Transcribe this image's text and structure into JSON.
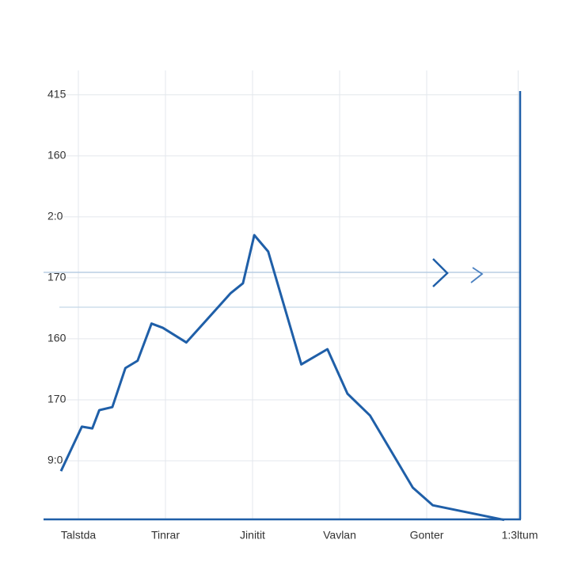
{
  "chart_data": {
    "type": "line",
    "xlim": [
      -0.4,
      5.1
    ],
    "xticks": [
      {
        "value": 0,
        "label": "Talstda"
      },
      {
        "value": 1,
        "label": "Tinrar"
      },
      {
        "value": 2,
        "label": "Jinitit"
      },
      {
        "value": 3,
        "label": "Vavlan"
      },
      {
        "value": 4,
        "label": "Gonter"
      },
      {
        "value": 5.05,
        "label": "1:3ltum"
      }
    ],
    "ylim": [
      0,
      7.4
    ],
    "yticks": [
      {
        "value": 1,
        "label": "9:0"
      },
      {
        "value": 2,
        "label": "170"
      },
      {
        "value": 3,
        "label": "160"
      },
      {
        "value": 4,
        "label": "170"
      },
      {
        "value": 5,
        "label": "2:0"
      },
      {
        "value": 6,
        "label": "160"
      },
      {
        "value": 7,
        "label": "415"
      }
    ],
    "grid": true,
    "series": [
      {
        "color": "#1f5fa8",
        "x": [
          -0.2,
          0.04,
          0.16,
          0.24,
          0.39,
          0.54,
          0.68,
          0.84,
          0.97,
          1.24,
          1.75,
          1.89,
          2.02,
          2.18,
          2.56,
          2.86,
          3.09,
          3.35,
          3.84,
          4.07,
          4.89
        ],
        "values": [
          0.83,
          1.56,
          1.53,
          1.83,
          1.88,
          2.52,
          2.64,
          3.25,
          3.18,
          2.94,
          3.75,
          3.91,
          4.7,
          4.43,
          2.58,
          2.83,
          2.1,
          1.74,
          0.56,
          0.27,
          0.03
        ]
      }
    ]
  }
}
